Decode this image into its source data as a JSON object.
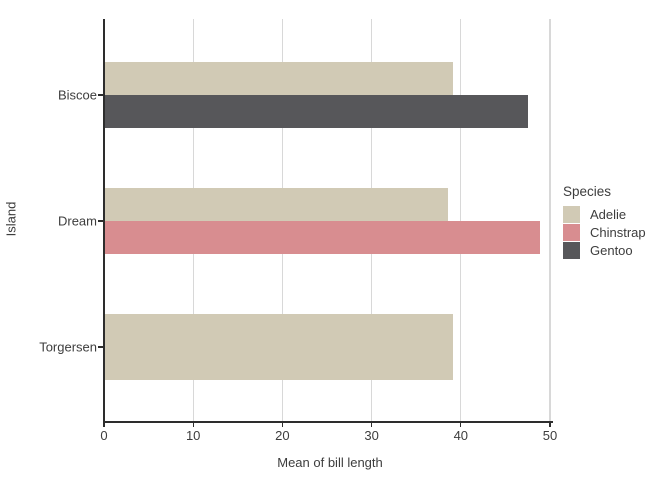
{
  "chart_data": {
    "type": "bar",
    "orientation": "horizontal",
    "title": "",
    "xlabel": "Mean of bill length",
    "ylabel": "Island",
    "xlim": [
      0,
      50
    ],
    "x_ticks": [
      0,
      10,
      20,
      30,
      40,
      50
    ],
    "categories": [
      "Biscoe",
      "Dream",
      "Torgersen"
    ],
    "series": [
      {
        "name": "Adelie",
        "color": "#d1cab5",
        "values": {
          "Biscoe": 39.0,
          "Dream": 38.5,
          "Torgersen": 39.0
        }
      },
      {
        "name": "Chinstrap",
        "color": "#d88d90",
        "values": {
          "Biscoe": null,
          "Dream": 48.8,
          "Torgersen": null
        }
      },
      {
        "name": "Gentoo",
        "color": "#57575a",
        "values": {
          "Biscoe": 47.5,
          "Dream": null,
          "Torgersen": null
        }
      }
    ],
    "legend": {
      "title": "Species",
      "position": "right"
    },
    "grid": "vertical-major",
    "style_colors": {
      "background": "#ffffff",
      "gridline": "#d8d8d8",
      "axis": "#2d2d2d",
      "text": "#3d3d3d"
    }
  }
}
